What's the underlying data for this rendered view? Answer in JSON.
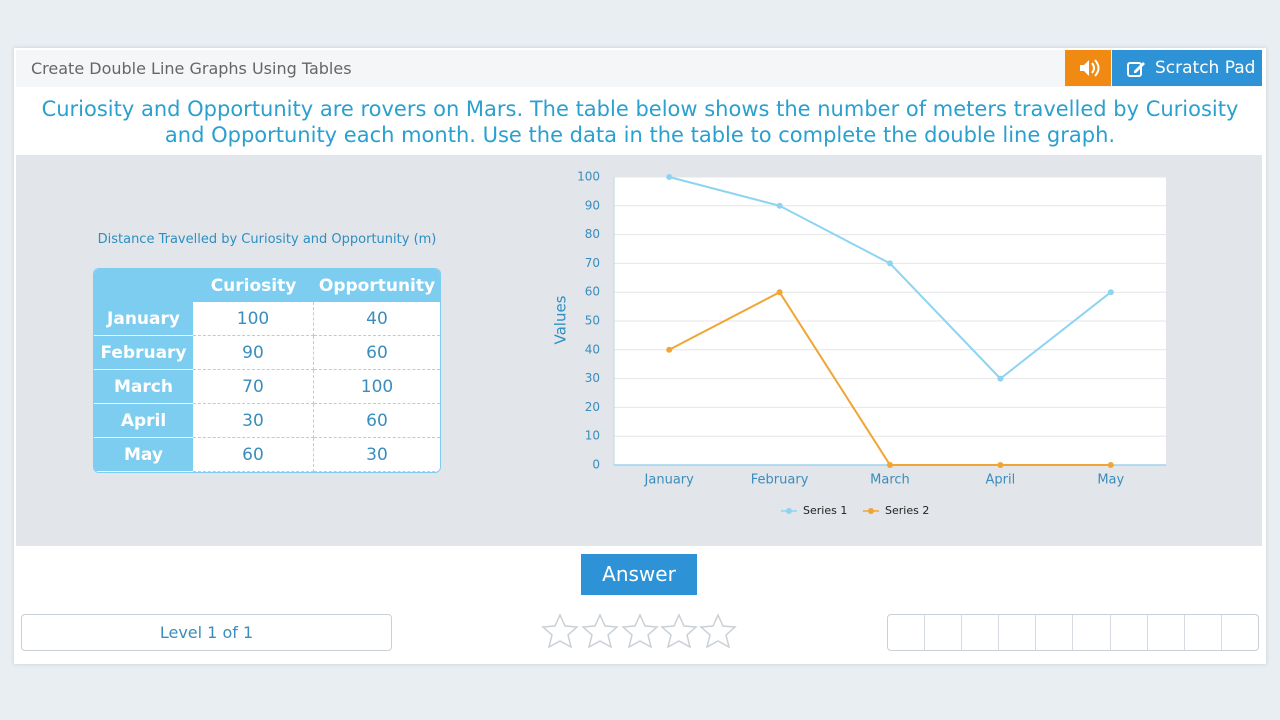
{
  "header": {
    "title": "Create Double Line Graphs Using Tables",
    "scratch_pad": "Scratch Pad"
  },
  "question": "Curiosity and Opportunity are rovers on Mars. The table below shows the number of meters travelled by Curiosity and Opportunity each month. Use the data in the table to complete the double line graph.",
  "table": {
    "title": "Distance Travelled by Curiosity and Opportunity (m)",
    "columns": [
      "Curiosity",
      "Opportunity"
    ],
    "rows": [
      [
        "January",
        100,
        40
      ],
      [
        "February",
        90,
        60
      ],
      [
        "March",
        70,
        100
      ],
      [
        "April",
        30,
        60
      ],
      [
        "May",
        60,
        30
      ]
    ]
  },
  "chart_data": {
    "type": "line",
    "y_label": "Values",
    "categories": [
      "January",
      "February",
      "March",
      "April",
      "May"
    ],
    "series": [
      {
        "name": "Series 1",
        "color": "#8dd4f2",
        "values": [
          100,
          90,
          70,
          30,
          60
        ]
      },
      {
        "name": "Series 2",
        "color": "#f0a534",
        "values": [
          40,
          60,
          0,
          0,
          0
        ]
      }
    ],
    "ylim": [
      0,
      100
    ],
    "yticks": [
      0,
      10,
      20,
      30,
      40,
      50,
      60,
      70,
      80,
      90,
      100
    ],
    "grid": true
  },
  "answer_button": "Answer",
  "footer": {
    "level": "Level 1 of 1"
  }
}
